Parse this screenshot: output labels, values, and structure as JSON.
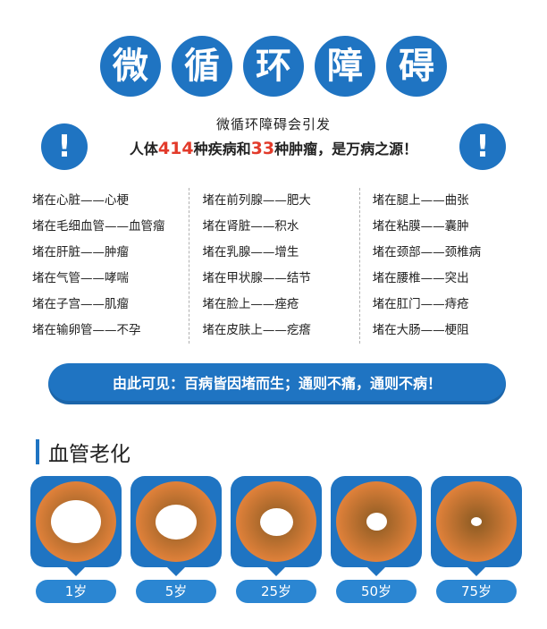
{
  "title_chars": [
    "微",
    "循",
    "环",
    "障",
    "碍"
  ],
  "headline": {
    "line1": "微循环障碍会引发",
    "line2_a": "人体",
    "line2_num1": "414",
    "line2_b": "种疾病和",
    "line2_num2": "33",
    "line2_c": "种肿瘤，是万病之源！",
    "exclaim": "!"
  },
  "columns": [
    [
      "堵在心脏——心梗",
      "堵在毛细血管——血管瘤",
      "堵在肝脏——肿瘤",
      "堵在气管——哮喘",
      "堵在子宫——肌瘤",
      "堵在输卵管——不孕"
    ],
    [
      "堵在前列腺——肥大",
      "堵在肾脏——积水",
      "堵在乳腺——增生",
      "堵在甲状腺——结节",
      "堵在脸上——痤疮",
      "堵在皮肤上——疙瘩"
    ],
    [
      "堵在腿上——曲张",
      "堵在粘膜——囊肿",
      "堵在颈部——颈椎病",
      "堵在腰椎——突出",
      "堵在肛门——痔疮",
      "堵在大肠——梗阻"
    ]
  ],
  "banner": "由此可见：百病皆因堵而生；通则不痛，通则不病！",
  "section_title": "血管老化",
  "vessels": [
    {
      "age": "1岁",
      "lumen_fraction": 0.72
    },
    {
      "age": "5岁",
      "lumen_fraction": 0.6
    },
    {
      "age": "25岁",
      "lumen_fraction": 0.48
    },
    {
      "age": "50岁",
      "lumen_fraction": 0.3
    },
    {
      "age": "75岁",
      "lumen_fraction": 0.15
    }
  ],
  "colors": {
    "accent": "#1f74c2",
    "highlight": "#e23a2a",
    "vessel_wall": "#e0813a",
    "plaque": "#8a5a22",
    "lumen": "#ffffff"
  }
}
